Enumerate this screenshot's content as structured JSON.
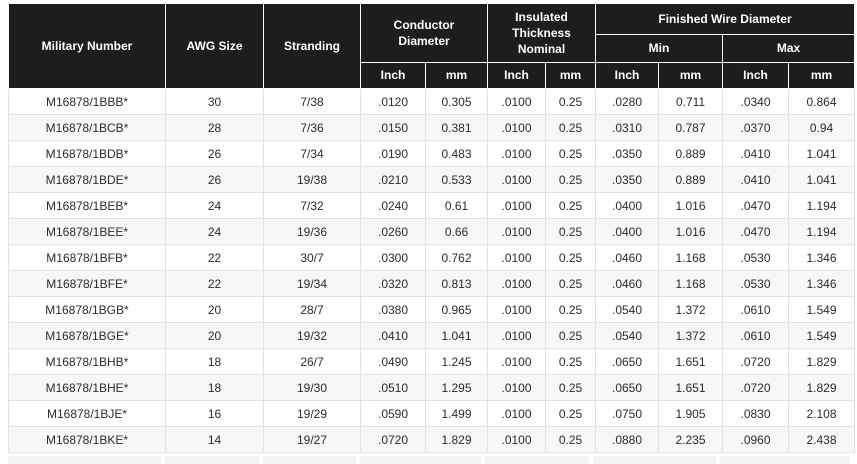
{
  "chart_data": {
    "type": "table",
    "header": {
      "military_number": "Military Number",
      "awg_size": "AWG Size",
      "stranding": "Stranding",
      "conductor_diameter": "Conductor Diameter",
      "insulated_thickness_nominal": "Insulated Thickness Nominal",
      "finished_wire_diameter": "Finished Wire Diameter",
      "min": "Min",
      "max": "Max",
      "inch": "Inch",
      "mm": "mm"
    },
    "rows": [
      [
        "M16878/1BBB*",
        "30",
        "7/38",
        ".0120",
        "0.305",
        ".0100",
        "0.25",
        ".0280",
        "0.711",
        ".0340",
        "0.864"
      ],
      [
        "M16878/1BCB*",
        "28",
        "7/36",
        ".0150",
        "0.381",
        ".0100",
        "0.25",
        ".0310",
        "0.787",
        ".0370",
        "0.94"
      ],
      [
        "M16878/1BDB*",
        "26",
        "7/34",
        ".0190",
        "0.483",
        ".0100",
        "0.25",
        ".0350",
        "0.889",
        ".0410",
        "1.041"
      ],
      [
        "M16878/1BDE*",
        "26",
        "19/38",
        ".0210",
        "0.533",
        ".0100",
        "0.25",
        ".0350",
        "0.889",
        ".0410",
        "1.041"
      ],
      [
        "M16878/1BEB*",
        "24",
        "7/32",
        ".0240",
        "0.61",
        ".0100",
        "0.25",
        ".0400",
        "1.016",
        ".0470",
        "1.194"
      ],
      [
        "M16878/1BEE*",
        "24",
        "19/36",
        ".0260",
        "0.66",
        ".0100",
        "0.25",
        ".0400",
        "1.016",
        ".0470",
        "1.194"
      ],
      [
        "M16878/1BFB*",
        "22",
        "30/7",
        ".0300",
        "0.762",
        ".0100",
        "0.25",
        ".0460",
        "1.168",
        ".0530",
        "1.346"
      ],
      [
        "M16878/1BFE*",
        "22",
        "19/34",
        ".0320",
        "0.813",
        ".0100",
        "0.25",
        ".0460",
        "1.168",
        ".0530",
        "1.346"
      ],
      [
        "M16878/1BGB*",
        "20",
        "28/7",
        ".0380",
        "0.965",
        ".0100",
        "0.25",
        ".0540",
        "1.372",
        ".0610",
        "1.549"
      ],
      [
        "M16878/1BGE*",
        "20",
        "19/32",
        ".0410",
        "1.041",
        ".0100",
        "0.25",
        ".0540",
        "1.372",
        ".0610",
        "1.549"
      ],
      [
        "M16878/1BHB*",
        "18",
        "26/7",
        ".0490",
        "1.245",
        ".0100",
        "0.25",
        ".0650",
        "1.651",
        ".0720",
        "1.829"
      ],
      [
        "M16878/1BHE*",
        "18",
        "19/30",
        ".0510",
        "1.295",
        ".0100",
        "0.25",
        ".0650",
        "1.651",
        ".0720",
        "1.829"
      ],
      [
        "M16878/1BJE*",
        "16",
        "19/29",
        ".0590",
        "1.499",
        ".0100",
        "0.25",
        ".0750",
        "1.905",
        ".0830",
        "2.108"
      ],
      [
        "M16878/1BKE*",
        "14",
        "19/27",
        ".0720",
        "1.829",
        ".0100",
        "0.25",
        ".0880",
        "2.235",
        ".0960",
        "2.438"
      ]
    ],
    "colors": {
      "header_bg": "#1d1d1d",
      "header_text": "#ffffff",
      "row_bg": "#ffffff",
      "row_alt_bg": "#f7f7f7",
      "border": "#e1e1e1",
      "cell_text": "#2b2b2b"
    }
  }
}
